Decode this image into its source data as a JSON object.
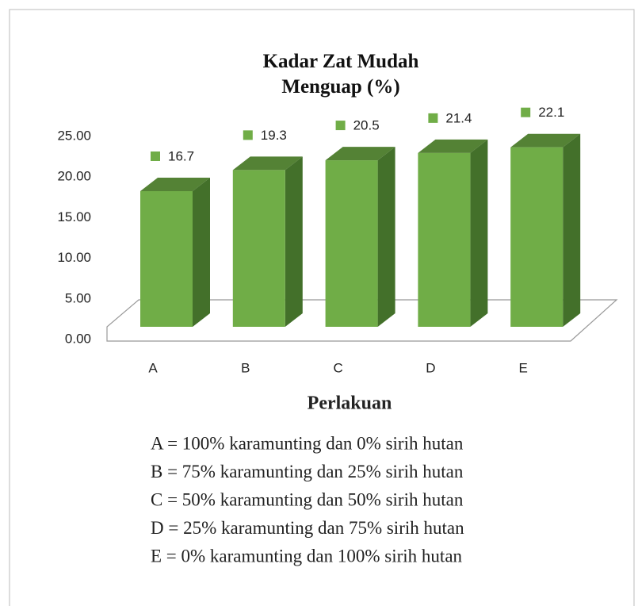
{
  "chart_data": {
    "type": "bar3d",
    "title": "Kadar Zat Mudah Menguap (%)",
    "categories": [
      "A",
      "B",
      "C",
      "D",
      "E"
    ],
    "values": [
      16.7,
      19.3,
      20.5,
      21.4,
      22.1
    ],
    "color": "#70ad47",
    "ylim": [
      0,
      25
    ],
    "yticks": [
      {
        "value": 0,
        "label": "0.00"
      },
      {
        "value": 5,
        "label": "5.00"
      },
      {
        "value": 10,
        "label": "10.00"
      },
      {
        "value": 15,
        "label": "15.00"
      },
      {
        "value": 20,
        "label": "20.00"
      },
      {
        "value": 25,
        "label": "25.00"
      }
    ],
    "xlabel": "Perlakuan",
    "notes": [
      "A = 100% karamunting dan 0% sirih hutan",
      "B = 75% karamunting dan 25% sirih hutan",
      "C = 50% karamunting dan 50% sirih hutan",
      "D = 25% karamunting dan 75% sirih hutan",
      "E = 0% karamunting dan 100% sirih hutan"
    ]
  }
}
